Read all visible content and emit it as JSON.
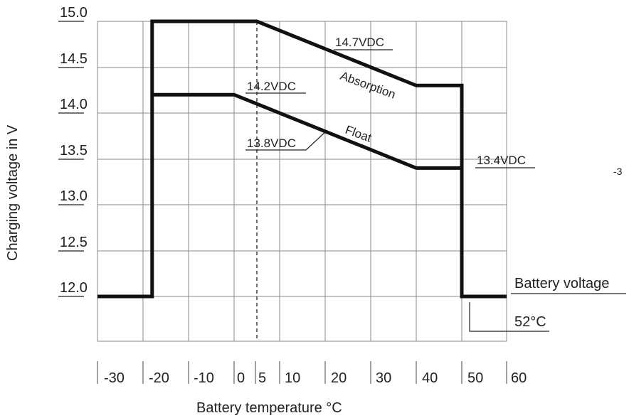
{
  "chart_data": {
    "type": "line",
    "title": "",
    "xlabel": "Battery temperature  °C",
    "ylabel": "Charging voltage in V",
    "x_tick_labels": [
      "-30",
      "-20",
      "-10",
      "0",
      "5",
      "10",
      "20",
      "30",
      "40",
      "50",
      "60"
    ],
    "y_tick_labels": [
      "15.0",
      "14.5",
      "14.0",
      "13.5",
      "13.0",
      "12.5",
      "12.0"
    ],
    "ylim": [
      11.5,
      15.0
    ],
    "grid": true,
    "reference_line_x": 5,
    "series": [
      {
        "name": "Absorption",
        "color": "#111111",
        "points": [
          [
            -30,
            12.0
          ],
          [
            -18,
            12.0
          ],
          [
            -18,
            15.0
          ],
          [
            5,
            15.0
          ],
          [
            40,
            14.3
          ],
          [
            50,
            14.3
          ],
          [
            50,
            12.0
          ],
          [
            60,
            12.0
          ]
        ]
      },
      {
        "name": "Float",
        "color": "#111111",
        "points": [
          [
            -18,
            14.2
          ],
          [
            0,
            14.2
          ],
          [
            40,
            13.4
          ],
          [
            50,
            13.4
          ]
        ]
      }
    ],
    "annotations": {
      "absorption_voltage": "14.7VDC",
      "float_high": "14.2VDC",
      "float_mid": "13.8VDC",
      "float_low": "13.4VDC",
      "absorption_label": "Absorption",
      "float_label": "Float",
      "battery_voltage": "Battery voltage",
      "cutoff_temp": "52°C"
    },
    "stray_text": "-3"
  }
}
